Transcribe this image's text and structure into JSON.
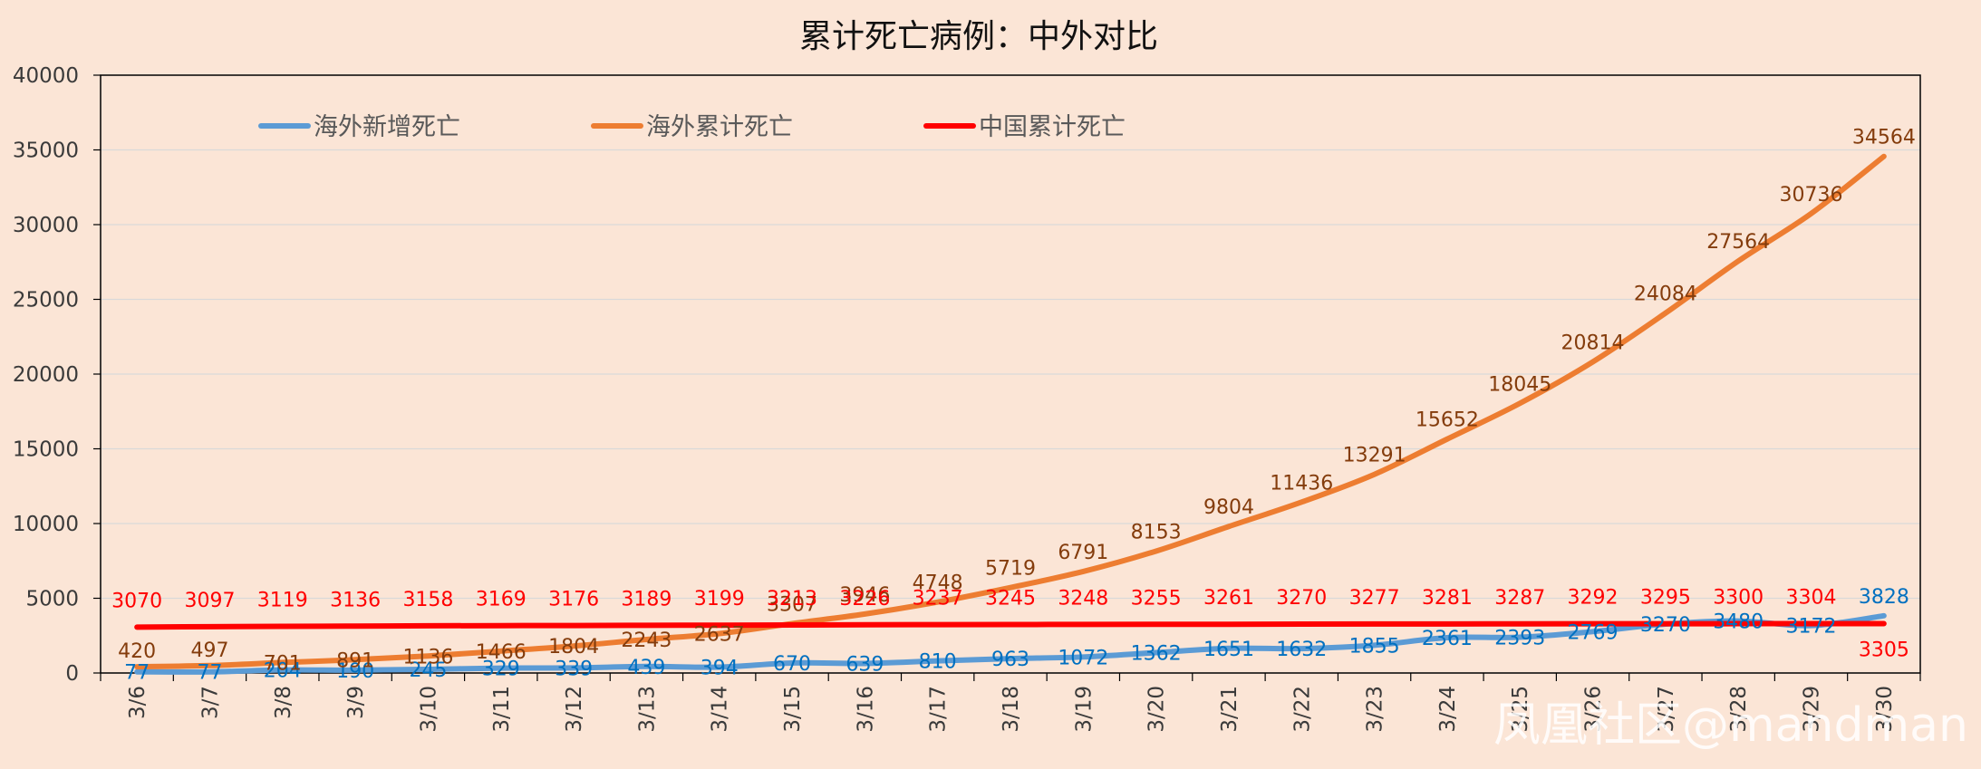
{
  "chart_data": {
    "type": "line",
    "title": "累计死亡病例：中外对比",
    "xlabel": "",
    "ylabel": "",
    "ylim": [
      0,
      40000
    ],
    "yticks": [
      0,
      5000,
      10000,
      15000,
      20000,
      25000,
      30000,
      35000,
      40000
    ],
    "grid": true,
    "legend_position": "top",
    "categories": [
      "3/6",
      "3/7",
      "3/8",
      "3/9",
      "3/10",
      "3/11",
      "3/12",
      "3/13",
      "3/14",
      "3/15",
      "3/16",
      "3/17",
      "3/18",
      "3/19",
      "3/20",
      "3/21",
      "3/22",
      "3/23",
      "3/24",
      "3/25",
      "3/26",
      "3/27",
      "3/28",
      "3/29",
      "3/30"
    ],
    "series": [
      {
        "name": "海外新增死亡",
        "color": "#5b9bd5",
        "label_color": "#0070c0",
        "values": [
          77,
          77,
          204,
          190,
          245,
          329,
          339,
          439,
          394,
          670,
          639,
          810,
          963,
          1072,
          1362,
          1651,
          1632,
          1855,
          2361,
          2393,
          2769,
          3270,
          3480,
          3172,
          3828
        ]
      },
      {
        "name": "海外累计死亡",
        "color": "#ed7d31",
        "label_color": "#843c0c",
        "values": [
          420,
          497,
          701,
          891,
          1136,
          1466,
          1804,
          2243,
          2637,
          3307,
          3946,
          4748,
          5719,
          6791,
          8153,
          9804,
          11436,
          13291,
          15652,
          18045,
          20814,
          24084,
          27564,
          30736,
          34564
        ]
      },
      {
        "name": "中国累计死亡",
        "color": "#ff0000",
        "label_color": "#ff0000",
        "values": [
          3070,
          3097,
          3119,
          3136,
          3158,
          3169,
          3176,
          3189,
          3199,
          3213,
          3226,
          3237,
          3245,
          3248,
          3255,
          3261,
          3270,
          3277,
          3281,
          3287,
          3292,
          3295,
          3300,
          3304,
          3305
        ]
      }
    ]
  },
  "watermark": "凤凰社区@mandman"
}
